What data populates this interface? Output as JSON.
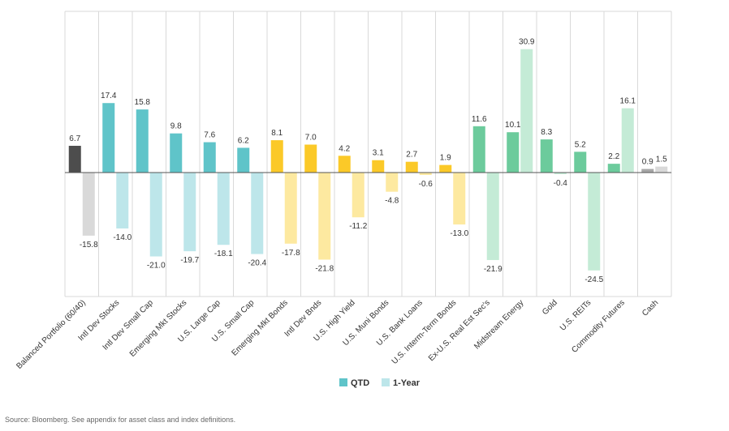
{
  "chart_data": {
    "type": "bar",
    "categories": [
      "Balanced Portfolio (60/40)",
      "Intl Dev Stocks",
      "Intl Dev Small Cap",
      "Emerging Mkt Stocks",
      "U.S. Large Cap",
      "U.S. Small Cap",
      "Emerging Mkt Bonds",
      "Intl Dev Bnds",
      "U.S. High Yield",
      "U.S. Muni Bonds",
      "U.S. Bank Loans",
      "U.S. Interm-Term Bonds",
      "Ex-U.S. Real Est Sec's",
      "Midstream Energy",
      "Gold",
      "U.S. REITs",
      "Commodity Futures",
      "Cash"
    ],
    "series": [
      {
        "name": "QTD",
        "values": [
          6.7,
          17.4,
          15.8,
          9.8,
          7.6,
          6.2,
          8.1,
          7.0,
          4.2,
          3.1,
          2.7,
          1.9,
          11.6,
          10.1,
          8.3,
          5.2,
          2.2,
          0.9
        ]
      },
      {
        "name": "1-Year",
        "values": [
          -15.8,
          -14.0,
          -21.0,
          -19.7,
          -18.1,
          -20.4,
          -17.8,
          -21.8,
          -11.2,
          -4.8,
          -0.6,
          -13.0,
          -21.9,
          30.9,
          -0.4,
          -24.5,
          16.1,
          1.5
        ]
      }
    ],
    "value_labels_qtd": [
      "6.7",
      "17.4",
      "15.8",
      "9.8",
      "7.6",
      "6.2",
      "8.1",
      "7.0",
      "4.2",
      "3.1",
      "2.7",
      "1.9",
      "11.6",
      "10.1",
      "8.3",
      "5.2",
      "2.2",
      "0.9"
    ],
    "value_labels_1yr": [
      "-15.8",
      "-14.0",
      "-21.0",
      "-19.7",
      "-18.1",
      "-20.4",
      "-17.8",
      "-21.8",
      "-11.2",
      "-4.8",
      "-0.6",
      "-13.0",
      "-21.9",
      "30.9",
      "-0.4",
      "-24.5",
      "16.1",
      "1.5"
    ],
    "groups": [
      {
        "from": 0,
        "to": 0,
        "qtd_color": "#4d4d4d",
        "yr_color": "#d9d9d9"
      },
      {
        "from": 1,
        "to": 5,
        "qtd_color": "#5fc4c9",
        "yr_color": "#bde6ea"
      },
      {
        "from": 6,
        "to": 11,
        "qtd_color": "#fbc928",
        "yr_color": "#fde9a0"
      },
      {
        "from": 12,
        "to": 16,
        "qtd_color": "#6ccb9c",
        "yr_color": "#c4ebd6"
      },
      {
        "from": 17,
        "to": 17,
        "qtd_color": "#a8a8a8",
        "yr_color": "#d9d9d9"
      }
    ],
    "ylim": [
      -26,
      36
    ],
    "legend": {
      "position": "bottom-center",
      "entries": [
        "QTD",
        "1-Year"
      ],
      "colors": [
        "#5fc4c9",
        "#bde6ea"
      ]
    },
    "title": "",
    "xlabel": "",
    "ylabel": ""
  },
  "source_note": "Source: Bloomberg. See appendix for asset class and index definitions.",
  "colors": {
    "grid": "#d9d9d9",
    "axis": "#555555",
    "text": "#333333"
  }
}
